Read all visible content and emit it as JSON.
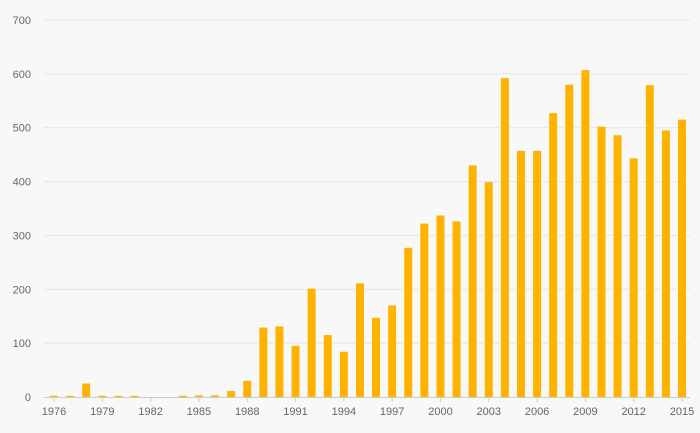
{
  "chart_data": {
    "type": "bar",
    "categories": [
      1976,
      1977,
      1978,
      1979,
      1980,
      1981,
      1982,
      1983,
      1984,
      1985,
      1986,
      1987,
      1988,
      1989,
      1990,
      1991,
      1992,
      1993,
      1994,
      1995,
      1996,
      1997,
      1998,
      1999,
      2000,
      2001,
      2002,
      2003,
      2004,
      2005,
      2006,
      2007,
      2008,
      2009,
      2010,
      2011,
      2012,
      2013,
      2014,
      2015
    ],
    "values": [
      1,
      1,
      25,
      1,
      1,
      1,
      0,
      0,
      1,
      3,
      3,
      11,
      30,
      129,
      131,
      95,
      201,
      115,
      84,
      211,
      147,
      170,
      277,
      322,
      337,
      326,
      430,
      399,
      592,
      457,
      457,
      527,
      580,
      607,
      502,
      486,
      443,
      579,
      495,
      515
    ],
    "x_tick_labels": [
      "1976",
      "1979",
      "1982",
      "1985",
      "1988",
      "1991",
      "1994",
      "1997",
      "2000",
      "2003",
      "2006",
      "2009",
      "2012",
      "2015"
    ],
    "y_ticks": [
      0,
      100,
      200,
      300,
      400,
      500,
      600,
      700
    ],
    "ylim": [
      0,
      700
    ],
    "grid": true,
    "legend": "none",
    "title": "",
    "xlabel": "",
    "ylabel": "",
    "colors": {
      "bar": "#FFB300",
      "grid": "#e6e6e6",
      "background": "#f8f8f8",
      "axis": "#cccccc",
      "text": "#666666"
    }
  }
}
